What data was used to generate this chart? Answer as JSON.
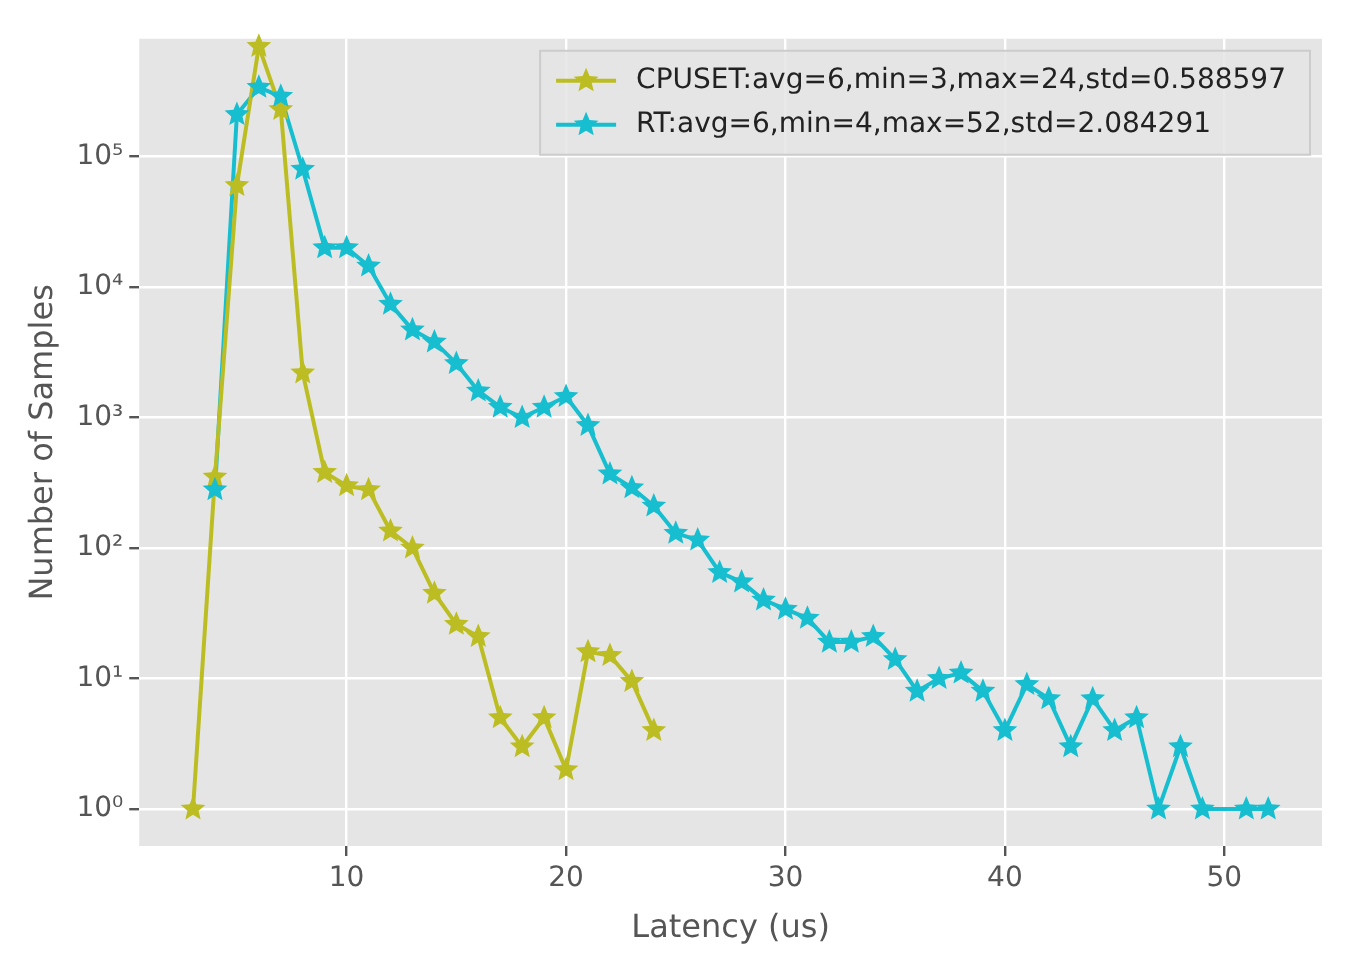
{
  "chart_data": {
    "type": "line",
    "xlabel": "Latency (us)",
    "ylabel": "Number of Samples",
    "log": "y",
    "grid": true,
    "legend": "top right",
    "marker": "star",
    "line_style": "solid",
    "xlim": [
      0.55,
      54.45
    ],
    "xticks": [
      10,
      20,
      30,
      40,
      50
    ],
    "ylim": [
      0.52,
      800000
    ],
    "yticks": [
      {
        "value": 1,
        "label": "10⁰"
      },
      {
        "value": 10,
        "label": "10¹"
      },
      {
        "value": 100,
        "label": "10²"
      },
      {
        "value": 1000,
        "label": "10³"
      },
      {
        "value": 10000,
        "label": "10⁴"
      },
      {
        "value": 100000,
        "label": "10⁵"
      }
    ],
    "series": [
      {
        "name": "CPUSET:avg=6,min=3,max=24,std=0.588597",
        "color": "#bcbd22",
        "x": [
          3,
          4,
          5,
          6,
          7,
          8,
          9,
          10,
          11,
          12,
          13,
          14,
          15,
          16,
          17,
          18,
          19,
          20,
          21,
          22,
          23,
          24
        ],
        "values": [
          1,
          350,
          60000,
          700000,
          230000,
          2200,
          380,
          300,
          280,
          135,
          100,
          45,
          26,
          21,
          5,
          3,
          5,
          2,
          16,
          15,
          9.5,
          4
        ]
      },
      {
        "name": "RT:avg=6,min=4,max=52,std=2.084291",
        "color": "#17becf",
        "x": [
          4,
          5,
          6,
          7,
          8,
          9,
          10,
          11,
          12,
          13,
          14,
          15,
          16,
          17,
          18,
          19,
          20,
          21,
          22,
          23,
          24,
          25,
          26,
          27,
          28,
          29,
          30,
          31,
          32,
          33,
          34,
          35,
          36,
          37,
          38,
          39,
          40,
          41,
          42,
          43,
          44,
          45,
          46,
          47,
          48,
          49,
          51,
          52
        ],
        "values": [
          280,
          210000,
          340000,
          290000,
          80000,
          20000,
          20000,
          14500,
          7400,
          4700,
          3800,
          2600,
          1600,
          1200,
          1000,
          1200,
          1450,
          870,
          370,
          290,
          210,
          130,
          115,
          65,
          55,
          40,
          34,
          29,
          19,
          19,
          21,
          14,
          8,
          10,
          11,
          8,
          4,
          9,
          7,
          3,
          7,
          4,
          5,
          1,
          3,
          1,
          1,
          1
        ]
      }
    ]
  }
}
